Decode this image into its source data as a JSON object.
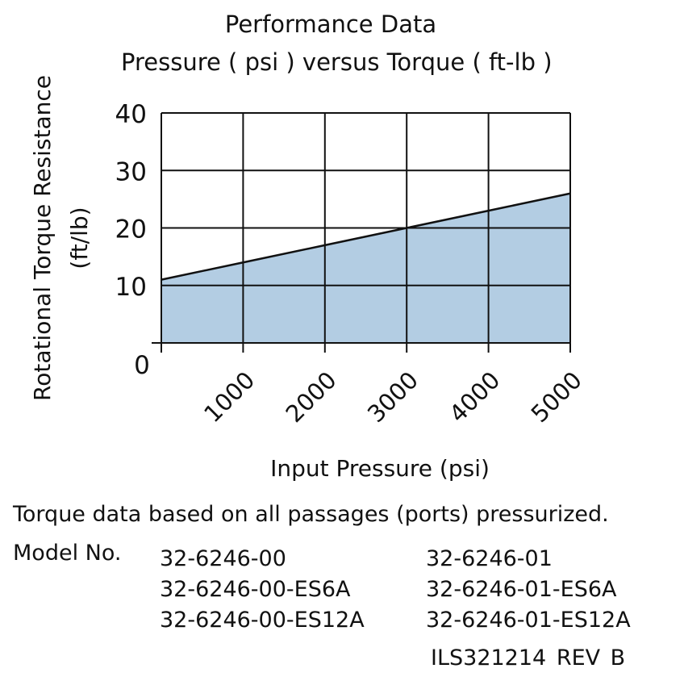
{
  "chart_data": {
    "type": "area",
    "title": "Performance Data",
    "subtitle": "Pressure ( psi ) versus Torque ( ft-lb )",
    "xlabel": "Input Pressure (psi)",
    "ylabel": "Rotational Torque Resistance",
    "ylabel_unit": "(ft/lb)",
    "x": [
      0,
      1000,
      2000,
      3000,
      4000,
      5000
    ],
    "y": [
      11,
      14,
      17,
      20,
      23,
      26
    ],
    "xlim": [
      0,
      5000
    ],
    "ylim": [
      0,
      40
    ],
    "x_ticks": [
      1000,
      2000,
      3000,
      4000,
      5000
    ],
    "y_ticks": [
      0,
      10,
      20,
      30,
      40
    ],
    "grid": true,
    "fill_color": "#b3cde3",
    "line_color": "#111111"
  },
  "footer": {
    "note": "Torque data based on all passages (ports) pressurized.",
    "model_label": "Model No.",
    "models": [
      [
        "32-6246-00",
        "32-6246-00-ES6A",
        "32-6246-00-ES12A"
      ],
      [
        "32-6246-01",
        "32-6246-01-ES6A",
        "32-6246-01-ES12A"
      ]
    ],
    "drawing_id": "ILS321214",
    "revision": "REV B"
  }
}
